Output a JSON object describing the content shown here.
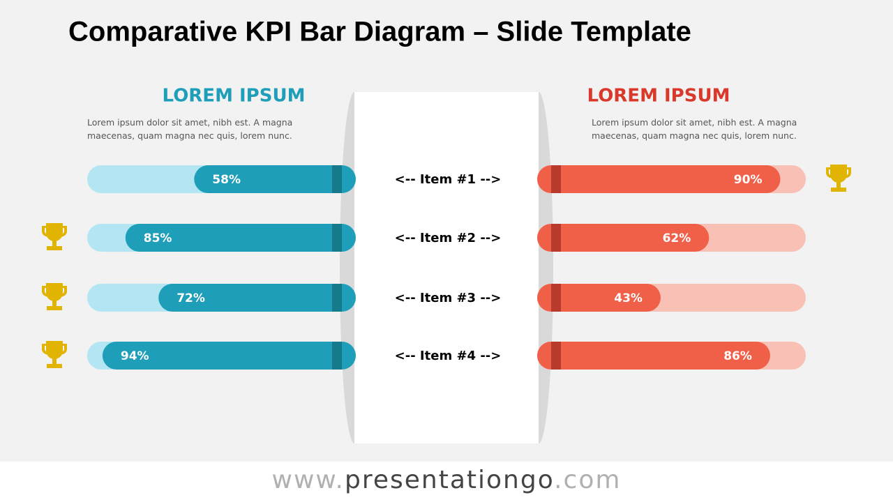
{
  "chart_data": {
    "type": "diverging-bar",
    "title": "Comparative KPI Bar Diagram – Slide Template",
    "categories": [
      "<-- Item #1 -->",
      "<-- Item #2 -->",
      "<-- Item #3 -->",
      "<-- Item #4 -->"
    ],
    "xlim": [
      0,
      100
    ],
    "series": [
      {
        "name": "LOREM IPSUM",
        "description": "Lorem ipsum dolor sit amet, nibh est. A magna maecenas, quam magna nec quis, lorem nunc.",
        "color": "#1e9eb9",
        "track_color": "#b3e6f2",
        "values": [
          58,
          85,
          72,
          94
        ],
        "value_labels": [
          "58%",
          "85%",
          "72%",
          "94%"
        ]
      },
      {
        "name": "LOREM IPSUM",
        "description": "Lorem ipsum dolor sit amet, nibh est. A magna maecenas, quam magna nec quis, lorem nunc.",
        "color": "#f05f48",
        "track_color": "#f9c1b5",
        "values": [
          90,
          62,
          43,
          86
        ],
        "value_labels": [
          "90%",
          "62%",
          "43%",
          "86%"
        ]
      }
    ]
  },
  "footer": {
    "prefix": "www.",
    "name": "presentationgo",
    "suffix": ".com"
  }
}
